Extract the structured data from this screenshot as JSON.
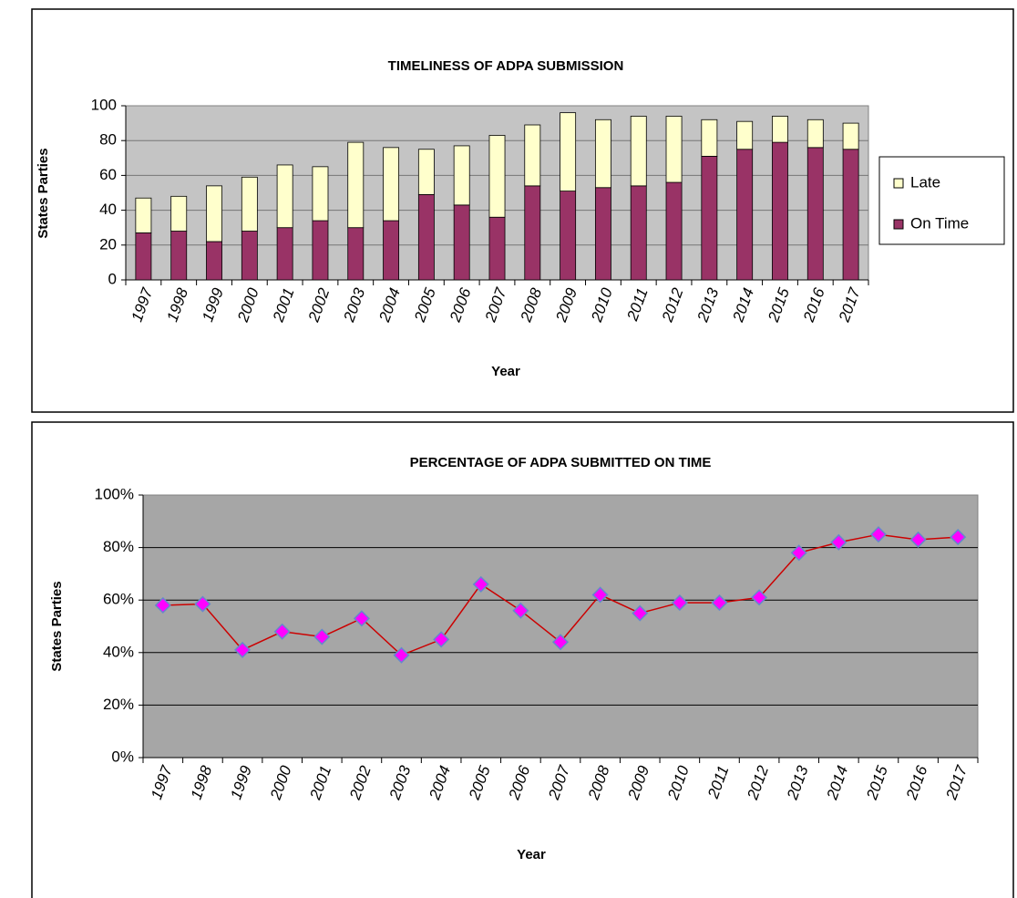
{
  "chart_data": [
    {
      "type": "bar",
      "stacked": true,
      "title": "TIMELINESS OF ADPA SUBMISSION",
      "xlabel": "Year",
      "ylabel": "States Parties",
      "categories": [
        "1997",
        "1998",
        "1999",
        "2000",
        "2001",
        "2002",
        "2003",
        "2004",
        "2005",
        "2006",
        "2007",
        "2008",
        "2009",
        "2010",
        "2011",
        "2012",
        "2013",
        "2014",
        "2015",
        "2016",
        "2017"
      ],
      "series": [
        {
          "name": "On Time",
          "color": "#993366",
          "values": [
            27,
            28,
            22,
            28,
            30,
            34,
            30,
            34,
            49,
            43,
            36,
            54,
            51,
            53,
            54,
            56,
            71,
            75,
            79,
            76,
            75
          ]
        },
        {
          "name": "Late",
          "color": "#ffffcc",
          "values": [
            20,
            20,
            32,
            31,
            36,
            31,
            49,
            42,
            26,
            34,
            47,
            35,
            45,
            39,
            40,
            38,
            21,
            16,
            15,
            16,
            15
          ]
        }
      ],
      "ylim": [
        0,
        100
      ],
      "yticks": [
        0,
        20,
        40,
        60,
        80,
        100
      ],
      "grid": true,
      "legend": "right",
      "plot_color": "#c4c4c4"
    },
    {
      "type": "line",
      "title": "PERCENTAGE  OF ADPA SUBMITTED ON TIME",
      "xlabel": "Year",
      "ylabel": "States Parties",
      "categories": [
        "1997",
        "1998",
        "1999",
        "2000",
        "2001",
        "2002",
        "2003",
        "2004",
        "2005",
        "2006",
        "2007",
        "2008",
        "2009",
        "2010",
        "2011",
        "2012",
        "2013",
        "2014",
        "2015",
        "2016",
        "2017"
      ],
      "series": [
        {
          "name": "On Time",
          "color": "#cc0000",
          "marker_color": "#ff00ff",
          "values": [
            58,
            58.5,
            41,
            48,
            46,
            53,
            39,
            45,
            66,
            56,
            44,
            62,
            55,
            59,
            59,
            61,
            78,
            82,
            85,
            83,
            84
          ]
        }
      ],
      "ylim": [
        0,
        100
      ],
      "yticks": [
        {
          "value": 0,
          "label": "0%"
        },
        {
          "value": 20,
          "label": "20%"
        },
        {
          "value": 40,
          "label": "40%"
        },
        {
          "value": 60,
          "label": "60%"
        },
        {
          "value": 80,
          "label": "80%"
        },
        {
          "value": 100,
          "label": "100%"
        }
      ],
      "grid": true,
      "plot_color": "#a6a6a6"
    }
  ]
}
